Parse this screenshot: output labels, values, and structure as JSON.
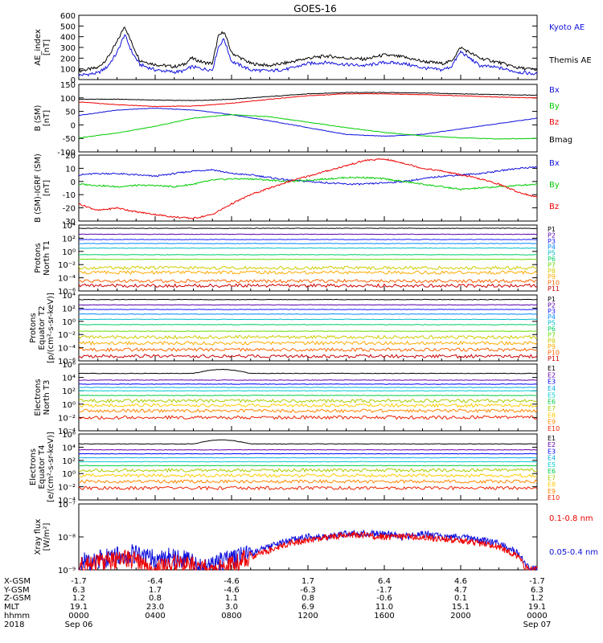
{
  "title": "GOES-16",
  "colors": {
    "black": "#000000",
    "blue": "#1010dd",
    "green": "#00cc00",
    "red": "#ee0000",
    "proton_palette": [
      "#000000",
      "#5500aa",
      "#1a1aff",
      "#0088ff",
      "#00bbcc",
      "#00cc66",
      "#66dd00",
      "#cccc00",
      "#ffaa00",
      "#ff6600",
      "#cc0000"
    ],
    "electron_palette": [
      "#000000",
      "#6600aa",
      "#0000ff",
      "#00aadd",
      "#00cccc",
      "#00cc44",
      "#aacc00",
      "#ffcc00",
      "#ff8800",
      "#ee2200",
      "#aa0000"
    ]
  },
  "time_axis": {
    "xgsm_label": "X-GSM",
    "ygsm_label": "Y-GSM",
    "zgsm_label": "Z-GSM",
    "mlt_label": "MLT",
    "hhmm_label": "hhmm",
    "year": "2018",
    "xgsm": [
      "-1.7",
      "-6.4",
      "-4.6",
      "1.7",
      "6.4",
      "4.6",
      "-1.7"
    ],
    "ygsm": [
      "6.3",
      "1.7",
      "-4.6",
      "-6.3",
      "-1.7",
      "4.7",
      "6.3"
    ],
    "zgsm": [
      "1.2",
      "0.8",
      "1.1",
      "0.8",
      "-0.6",
      "0.1",
      "1.2"
    ],
    "mlt": [
      "19.1",
      "23.0",
      "3.0",
      "6.9",
      "11.0",
      "15.1",
      "19.1"
    ],
    "hhmm": [
      "0000",
      "0400",
      "0800",
      "1200",
      "1600",
      "2000",
      "0000"
    ],
    "start_date": "Sep 06",
    "end_date": "Sep 07"
  },
  "chart_data": [
    {
      "type": "line",
      "id": "ae",
      "ylabel": [
        "AE_index",
        "[nT]"
      ],
      "ylim": [
        0,
        600
      ],
      "yticks": [
        "600",
        "500",
        "400",
        "300",
        "200",
        "100",
        "0"
      ],
      "legend": [
        {
          "name": "Kyoto AE",
          "color": "#1010dd"
        },
        {
          "name": "Themis AE",
          "color": "#000000"
        }
      ],
      "x_hours": [
        0,
        1,
        1.5,
        2,
        2.4,
        2.8,
        3.2,
        4,
        5,
        5.5,
        5.9,
        6.5,
        7,
        7.3,
        7.6,
        8,
        9,
        10,
        11,
        12,
        13,
        14,
        15,
        16,
        17,
        18,
        19,
        19.5,
        20,
        21,
        22,
        23,
        24
      ],
      "series": [
        {
          "name": "Themis AE",
          "values": [
            80,
            110,
            200,
            350,
            500,
            330,
            180,
            140,
            120,
            140,
            200,
            160,
            150,
            400,
            450,
            250,
            150,
            130,
            160,
            200,
            220,
            200,
            190,
            230,
            210,
            170,
            150,
            170,
            300,
            200,
            160,
            110,
            90
          ]
        },
        {
          "name": "Kyoto AE",
          "values": [
            40,
            60,
            120,
            250,
            420,
            250,
            140,
            90,
            70,
            80,
            120,
            100,
            90,
            300,
            380,
            170,
            90,
            80,
            100,
            150,
            160,
            140,
            130,
            160,
            150,
            110,
            90,
            120,
            260,
            130,
            110,
            70,
            50
          ]
        }
      ]
    },
    {
      "type": "line",
      "id": "bsm",
      "ylabel": [
        "B (SM)",
        "[nT]"
      ],
      "ylim": [
        -100,
        150
      ],
      "yticks": [
        "150",
        "100",
        "50",
        "0",
        "-50",
        "-100"
      ],
      "legend": [
        {
          "name": "Bx",
          "color": "#1010dd"
        },
        {
          "name": "By",
          "color": "#00cc00"
        },
        {
          "name": "Bz",
          "color": "#ee0000"
        },
        {
          "name": "Bmag",
          "color": "#000000"
        }
      ],
      "x_hours": [
        0,
        2,
        4,
        6,
        8,
        10,
        12,
        14,
        16,
        18,
        20,
        22,
        24
      ],
      "series": [
        {
          "name": "Bmag",
          "values": [
            95,
            95,
            92,
            90,
            95,
            105,
            115,
            120,
            120,
            118,
            115,
            112,
            110
          ]
        },
        {
          "name": "Bz",
          "values": [
            85,
            75,
            68,
            70,
            80,
            95,
            108,
            115,
            115,
            112,
            108,
            103,
            100
          ]
        },
        {
          "name": "Bx",
          "values": [
            35,
            55,
            62,
            55,
            38,
            15,
            -10,
            -35,
            -42,
            -35,
            -15,
            5,
            25
          ]
        },
        {
          "name": "By",
          "values": [
            -48,
            -30,
            -5,
            25,
            38,
            30,
            10,
            -10,
            -28,
            -40,
            -48,
            -52,
            -50
          ]
        }
      ]
    },
    {
      "type": "line",
      "id": "bigrf",
      "ylabel": [
        "B (SM)-IGRF (SM)",
        "[nT]"
      ],
      "ylim": [
        -30,
        20
      ],
      "yticks": [
        "20",
        "10",
        "0",
        "-10",
        "-20",
        "-30"
      ],
      "legend": [
        {
          "name": "Bx",
          "color": "#1010dd"
        },
        {
          "name": "By",
          "color": "#00cc00"
        },
        {
          "name": "Bz",
          "color": "#ee0000"
        }
      ],
      "x_hours": [
        0,
        1,
        2,
        3,
        4,
        5,
        6,
        7,
        8,
        9,
        10,
        11,
        12,
        13,
        14,
        15,
        16,
        17,
        18,
        19,
        20,
        21,
        22,
        23,
        24
      ],
      "series": [
        {
          "name": "Bx",
          "values": [
            5,
            6,
            6,
            5,
            4,
            6,
            8,
            9,
            6,
            5,
            3,
            1,
            0,
            -1,
            -2,
            -2,
            -1,
            0,
            2,
            4,
            5,
            6,
            8,
            10,
            11
          ]
        },
        {
          "name": "By",
          "values": [
            -2,
            -3,
            -4,
            -3,
            -3,
            -4,
            -2,
            1,
            2,
            2,
            1,
            0,
            1,
            2,
            3,
            3,
            2,
            0,
            -2,
            -4,
            -6,
            -5,
            -4,
            -3,
            -2
          ]
        },
        {
          "name": "Bz",
          "values": [
            -17,
            -22,
            -20,
            -23,
            -25,
            -27,
            -28,
            -25,
            -17,
            -10,
            -5,
            0,
            4,
            8,
            12,
            16,
            17,
            14,
            10,
            8,
            5,
            2,
            -2,
            -8,
            -12
          ]
        }
      ]
    },
    {
      "type": "line",
      "id": "protons-t1",
      "ylabel": [
        "Protons",
        "North T1"
      ],
      "yscale": "log",
      "ylim_exp": [
        -6,
        4
      ],
      "yticks": [
        "10⁴",
        "10²",
        "10⁰",
        "10⁻²",
        "10⁻⁴",
        "10⁻⁶"
      ],
      "channels": [
        "P1",
        "P2",
        "P3",
        "P4",
        "P5",
        "P6",
        "P7",
        "P8",
        "P9",
        "P10",
        "P11"
      ],
      "levels_exp": [
        3.5,
        2.6,
        1.8,
        1.2,
        0.5,
        -0.5,
        -1.2,
        -2.5,
        -3.2,
        -4.5,
        -5.2
      ]
    },
    {
      "type": "line",
      "id": "protons-t2",
      "ylabel": [
        "Protons",
        "Equator T2",
        "[p/(cm²-s-sr-keV)]"
      ],
      "yscale": "log",
      "ylim_exp": [
        -6,
        4
      ],
      "yticks": [
        "10⁴",
        "10²",
        "10⁰",
        "10⁻²",
        "10⁻⁴",
        "10⁻⁶"
      ],
      "channels": [
        "P1",
        "P2",
        "P3",
        "P4",
        "P5",
        "P6",
        "P7",
        "P8",
        "P9",
        "P10",
        "P11"
      ],
      "levels_exp": [
        3.3,
        2.5,
        1.8,
        1.1,
        0.3,
        -0.5,
        -1.5,
        -2.4,
        -3.3,
        -4.3,
        -5.3
      ]
    },
    {
      "type": "line",
      "id": "electrons-t3",
      "ylabel": [
        "Electrons",
        "North T3"
      ],
      "yscale": "log",
      "ylim_exp": [
        -4,
        6
      ],
      "yticks": [
        "10⁶",
        "10⁴",
        "10²",
        "10⁰",
        "10⁻²",
        "10⁻⁴"
      ],
      "channels": [
        "E1",
        "E2",
        "E3",
        "E4",
        "E5",
        "E6",
        "E7",
        "E8",
        "E9",
        "E10"
      ],
      "levels_exp": [
        4.6,
        3.6,
        3.0,
        2.5,
        2.0,
        1.3,
        0.5,
        -0.2,
        -1.0,
        -2.0
      ]
    },
    {
      "type": "line",
      "id": "electrons-t4",
      "ylabel": [
        "Electrons",
        "Equator T4",
        "[e/(cm²-s-sr-keV)]"
      ],
      "yscale": "log",
      "ylim_exp": [
        -4,
        6
      ],
      "yticks": [
        "10⁶",
        "10⁴",
        "10²",
        "10⁰",
        "10⁻²",
        "10⁻⁴"
      ],
      "channels": [
        "E1",
        "E2",
        "E3",
        "E4",
        "E5",
        "E6",
        "E7",
        "E8",
        "E9",
        "E10"
      ],
      "levels_exp": [
        4.5,
        3.6,
        3.0,
        2.4,
        1.8,
        1.2,
        0.5,
        -0.3,
        -1.2,
        -2.2
      ]
    },
    {
      "type": "line",
      "id": "xray",
      "ylabel": [
        "Xray flux",
        "[W/m²]"
      ],
      "yscale": "log",
      "ylim_exp": [
        -9,
        -7
      ],
      "yticks": [
        "10⁻⁷",
        "10⁻⁸",
        "10⁻⁹"
      ],
      "legend": [
        {
          "name": "0.1-0.8 nm",
          "color": "#ee0000"
        },
        {
          "name": "0.05-0.4 nm",
          "color": "#1010dd"
        }
      ],
      "x_hours": [
        0,
        1,
        2,
        3,
        3.5,
        4,
        5,
        6,
        6.5,
        7,
        8,
        9,
        10,
        11,
        12,
        13,
        14,
        15,
        16,
        17,
        18,
        19,
        20,
        21,
        22,
        23,
        23.5,
        24
      ],
      "series": [
        {
          "name": "0.05-0.4 nm",
          "values_exp": [
            -8.8,
            -8.7,
            -8.6,
            -8.5,
            -8.6,
            -8.7,
            -8.6,
            -8.8,
            -9.0,
            -8.8,
            -8.7,
            -8.5,
            -8.3,
            -8.1,
            -8.0,
            -8.0,
            -7.9,
            -7.9,
            -7.9,
            -8.0,
            -7.9,
            -8.0,
            -8.0,
            -8.1,
            -8.2,
            -8.5,
            -8.9,
            -9.0
          ]
        },
        {
          "name": "0.1-0.8 nm",
          "values_exp": [
            -8.9,
            -8.8,
            -8.7,
            -8.7,
            -8.9,
            -9.0,
            -8.8,
            -8.9,
            -9.0,
            -8.9,
            -8.8,
            -8.6,
            -8.4,
            -8.2,
            -8.1,
            -8.0,
            -7.95,
            -7.95,
            -8.0,
            -8.0,
            -8.0,
            -8.05,
            -8.1,
            -8.2,
            -8.3,
            -8.6,
            -9.0,
            -9.0
          ]
        }
      ]
    }
  ]
}
